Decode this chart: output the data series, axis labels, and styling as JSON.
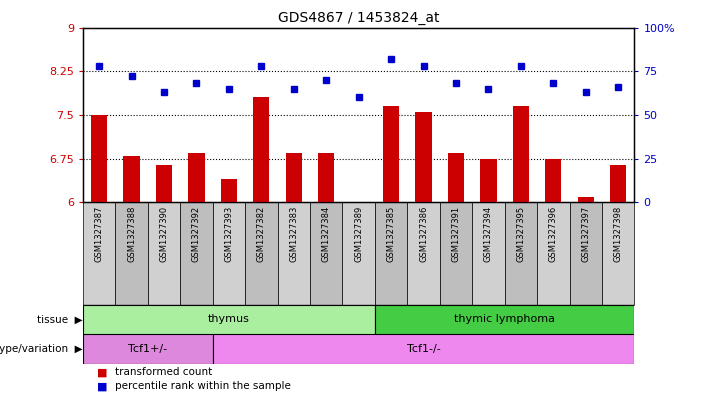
{
  "title": "GDS4867 / 1453824_at",
  "samples": [
    "GSM1327387",
    "GSM1327388",
    "GSM1327390",
    "GSM1327392",
    "GSM1327393",
    "GSM1327382",
    "GSM1327383",
    "GSM1327384",
    "GSM1327389",
    "GSM1327385",
    "GSM1327386",
    "GSM1327391",
    "GSM1327394",
    "GSM1327395",
    "GSM1327396",
    "GSM1327397",
    "GSM1327398"
  ],
  "red_values": [
    7.5,
    6.8,
    6.65,
    6.85,
    6.4,
    7.8,
    6.85,
    6.85,
    6.01,
    7.65,
    7.55,
    6.85,
    6.75,
    7.65,
    6.75,
    6.1,
    6.65
  ],
  "blue_values": [
    78,
    72,
    63,
    68,
    65,
    78,
    65,
    70,
    60,
    82,
    78,
    68,
    65,
    78,
    68,
    63,
    66
  ],
  "ylim_left": [
    6,
    9
  ],
  "ylim_right": [
    0,
    100
  ],
  "yticks_left": [
    6,
    6.75,
    7.5,
    8.25,
    9
  ],
  "yticks_right": [
    0,
    25,
    50,
    75,
    100
  ],
  "ytick_right_labels": [
    "0",
    "25",
    "50",
    "75",
    "100%"
  ],
  "tissue_groups": [
    {
      "label": "thymus",
      "start": 0,
      "end": 9,
      "color": "#AAEEA0"
    },
    {
      "label": "thymic lymphoma",
      "start": 9,
      "end": 17,
      "color": "#44CC44"
    }
  ],
  "genotype_groups": [
    {
      "label": "Tcf1+/-",
      "start": 0,
      "end": 4,
      "color": "#DD88DD"
    },
    {
      "label": "Tcf1-/-",
      "start": 4,
      "end": 17,
      "color": "#EE88EE"
    }
  ],
  "bar_color": "#CC0000",
  "dot_color": "#0000CC",
  "left_tick_color": "#CC0000",
  "right_tick_color": "#0000CC",
  "sample_bg_odd": "#D0D0D0",
  "sample_bg_even": "#BEBEBE",
  "legend_items": [
    "transformed count",
    "percentile rank within the sample"
  ]
}
